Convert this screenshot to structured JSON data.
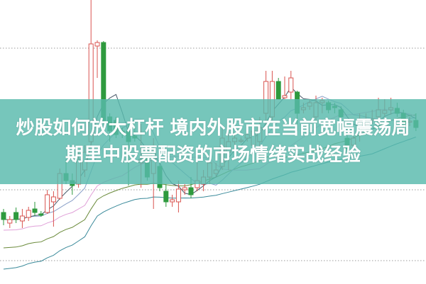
{
  "headline": {
    "line1": "炒股如何放大杠杆 境内外股市在当前宽幅震荡周",
    "line2": "期里中股票配资的市场情绪实战经验"
  },
  "chart_data": {
    "type": "candlestick",
    "grid": true,
    "colors": {
      "up": "#d9534f",
      "down": "#2e9a3e",
      "ma5": "#4a5a6a",
      "ma10": "#8aa0c8",
      "ma20": "#e0a0d8",
      "ma30": "#6a8a3a",
      "ma60": "#3a8a9a",
      "banner": "#58baac"
    },
    "candles": [
      [
        100,
        90,
        105,
        82
      ],
      [
        85,
        90,
        95,
        78
      ],
      [
        100,
        90,
        107,
        85
      ],
      [
        88,
        95,
        105,
        78
      ],
      [
        93,
        103,
        108,
        88
      ],
      [
        105,
        100,
        115,
        95
      ],
      [
        98,
        96,
        102,
        94
      ],
      [
        100,
        125,
        132,
        98
      ],
      [
        115,
        122,
        130,
        80
      ],
      [
        120,
        155,
        162,
        118
      ],
      [
        155,
        145,
        175,
        140
      ],
      [
        145,
        138,
        155,
        125
      ],
      [
        140,
        175,
        185,
        135
      ],
      [
        160,
        185,
        195,
        150
      ],
      [
        200,
        338,
        400,
        195
      ],
      [
        335,
        340,
        343,
        290
      ],
      [
        340,
        230,
        342,
        225
      ],
      [
        235,
        215,
        240,
        200
      ],
      [
        230,
        210,
        235,
        205
      ],
      [
        215,
        212,
        220,
        205
      ],
      [
        215,
        200,
        225,
        138
      ],
      [
        208,
        205,
        220,
        200
      ],
      [
        170,
        175,
        225,
        135
      ],
      [
        175,
        150,
        180,
        145
      ],
      [
        155,
        185,
        205,
        105
      ],
      [
        165,
        135,
        170,
        130
      ],
      [
        130,
        115,
        140,
        108
      ],
      [
        115,
        118,
        125,
        108
      ],
      [
        115,
        133,
        145,
        100
      ],
      [
        132,
        135,
        140,
        125
      ],
      [
        135,
        125,
        150,
        120
      ],
      [
        135,
        145,
        180,
        130
      ],
      [
        140,
        150,
        160,
        130
      ],
      [
        150,
        170,
        175,
        140
      ],
      [
        155,
        160,
        170,
        150
      ],
      [
        165,
        205,
        220,
        160
      ],
      [
        185,
        200,
        220,
        160
      ],
      [
        200,
        205,
        210,
        195
      ],
      [
        202,
        202,
        206,
        198
      ],
      [
        205,
        210,
        215,
        200
      ],
      [
        195,
        215,
        225,
        190
      ],
      [
        200,
        220,
        235,
        180
      ],
      [
        240,
        285,
        300,
        210
      ],
      [
        235,
        285,
        300,
        230
      ],
      [
        285,
        260,
        290,
        260
      ],
      [
        262,
        265,
        292,
        260
      ],
      [
        270,
        290,
        300,
        260
      ],
      [
        270,
        240,
        272,
        215
      ],
      [
        245,
        248,
        255,
        240
      ],
      [
        250,
        255,
        260,
        245
      ],
      [
        235,
        255,
        265,
        230
      ],
      [
        255,
        258,
        262,
        240
      ],
      [
        255,
        245,
        258,
        240
      ],
      [
        250,
        248,
        255,
        240
      ],
      [
        245,
        235,
        250,
        230
      ],
      [
        205,
        190,
        210,
        180
      ],
      [
        195,
        205,
        210,
        190
      ],
      [
        210,
        230,
        240,
        200
      ],
      [
        225,
        228,
        240,
        215
      ],
      [
        230,
        232,
        245,
        225
      ],
      [
        235,
        245,
        262,
        230
      ],
      [
        240,
        244,
        260,
        235
      ],
      [
        245,
        248,
        262,
        238
      ],
      [
        247,
        240,
        255,
        235
      ],
      [
        240,
        225,
        245,
        220
      ],
      [
        228,
        229,
        235,
        222
      ],
      [
        230,
        220,
        240,
        215
      ]
    ]
  }
}
